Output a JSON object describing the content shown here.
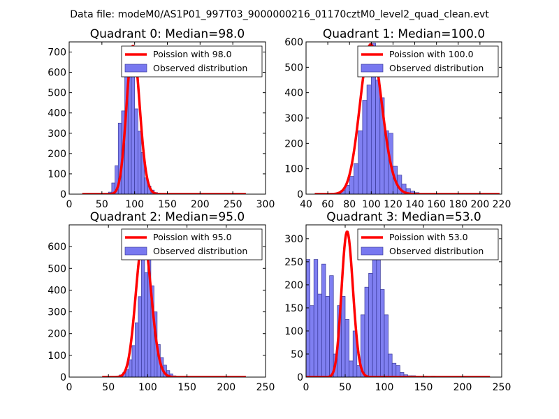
{
  "suptitle": "Data file: modeM0/AS1P01_997T03_9000000216_01170cztM0_level2_quad_clean.evt",
  "colors": {
    "bar_fill": "#7878f0",
    "bar_edge": "#3a3a9a",
    "poisson_line": "#ff0000",
    "legend_border": "#000000",
    "background": "#ffffff"
  },
  "chart_data": [
    {
      "type": "bar",
      "title": "Quadrant 0: Median=98.0",
      "xlim": [
        0,
        300
      ],
      "ylim": [
        0,
        750
      ],
      "xticks": [
        0,
        50,
        100,
        150,
        200,
        250,
        300
      ],
      "yticks": [
        0,
        100,
        200,
        300,
        400,
        500,
        600,
        700
      ],
      "bin_width": 5,
      "bars": [
        {
          "x": 60,
          "h": 10
        },
        {
          "x": 65,
          "h": 55
        },
        {
          "x": 70,
          "h": 140
        },
        {
          "x": 75,
          "h": 350
        },
        {
          "x": 80,
          "h": 410
        },
        {
          "x": 85,
          "h": 600
        },
        {
          "x": 90,
          "h": 690
        },
        {
          "x": 95,
          "h": 690
        },
        {
          "x": 100,
          "h": 420
        },
        {
          "x": 105,
          "h": 310
        },
        {
          "x": 110,
          "h": 205
        },
        {
          "x": 115,
          "h": 80
        },
        {
          "x": 120,
          "h": 40
        },
        {
          "x": 125,
          "h": 20
        },
        {
          "x": 130,
          "h": 8
        },
        {
          "x": 135,
          "h": 4
        }
      ],
      "poisson": {
        "mean": 98.0,
        "label": "Poission with 98.0",
        "peak": 730,
        "x_range": [
          20,
          270
        ]
      },
      "legend": {
        "line_label": "Poission with 98.0",
        "bar_label": "Observed distribution",
        "loc": "upper right"
      }
    },
    {
      "type": "bar",
      "title": "Quadrant 1: Median=100.0",
      "xlim": [
        40,
        220
      ],
      "ylim": [
        0,
        600
      ],
      "xticks": [
        40,
        60,
        80,
        100,
        120,
        140,
        160,
        180,
        200,
        220
      ],
      "yticks": [
        0,
        100,
        200,
        300,
        400,
        500,
        600
      ],
      "bin_width": 4,
      "bars": [
        {
          "x": 68,
          "h": 5
        },
        {
          "x": 72,
          "h": 15
        },
        {
          "x": 76,
          "h": 35
        },
        {
          "x": 80,
          "h": 70
        },
        {
          "x": 84,
          "h": 120
        },
        {
          "x": 88,
          "h": 250
        },
        {
          "x": 92,
          "h": 370
        },
        {
          "x": 96,
          "h": 430
        },
        {
          "x": 100,
          "h": 595
        },
        {
          "x": 104,
          "h": 450
        },
        {
          "x": 108,
          "h": 380
        },
        {
          "x": 112,
          "h": 250
        },
        {
          "x": 116,
          "h": 240
        },
        {
          "x": 120,
          "h": 110
        },
        {
          "x": 124,
          "h": 75
        },
        {
          "x": 128,
          "h": 40
        },
        {
          "x": 132,
          "h": 22
        },
        {
          "x": 136,
          "h": 12
        },
        {
          "x": 140,
          "h": 6
        },
        {
          "x": 144,
          "h": 3
        }
      ],
      "poisson": {
        "mean": 100.0,
        "label": "Poission with 100.0",
        "peak": 590,
        "x_range": [
          48,
          218
        ]
      },
      "legend": {
        "line_label": "Poission with 100.0",
        "bar_label": "Observed distribution",
        "loc": "upper right"
      }
    },
    {
      "type": "bar",
      "title": "Quadrant 2: Median=95.0",
      "xlim": [
        0,
        250
      ],
      "ylim": [
        0,
        700
      ],
      "xticks": [
        0,
        50,
        100,
        150,
        200,
        250
      ],
      "yticks": [
        0,
        100,
        200,
        300,
        400,
        500,
        600
      ],
      "bin_width": 4,
      "bars": [
        {
          "x": 60,
          "h": 5
        },
        {
          "x": 64,
          "h": 10
        },
        {
          "x": 68,
          "h": 20
        },
        {
          "x": 72,
          "h": 35
        },
        {
          "x": 76,
          "h": 80
        },
        {
          "x": 80,
          "h": 145
        },
        {
          "x": 84,
          "h": 250
        },
        {
          "x": 88,
          "h": 370
        },
        {
          "x": 92,
          "h": 660
        },
        {
          "x": 96,
          "h": 480
        },
        {
          "x": 100,
          "h": 630
        },
        {
          "x": 104,
          "h": 420
        },
        {
          "x": 108,
          "h": 300
        },
        {
          "x": 112,
          "h": 150
        },
        {
          "x": 116,
          "h": 90
        },
        {
          "x": 120,
          "h": 55
        },
        {
          "x": 124,
          "h": 30
        },
        {
          "x": 128,
          "h": 15
        },
        {
          "x": 132,
          "h": 6
        }
      ],
      "poisson": {
        "mean": 95.0,
        "label": "Poission with 95.0",
        "peak": 640,
        "x_range": [
          42,
          225
        ]
      },
      "legend": {
        "line_label": "Poission with 95.0",
        "bar_label": "Observed distribution",
        "loc": "upper right"
      }
    },
    {
      "type": "bar",
      "title": "Quadrant 3: Median=53.0",
      "xlim": [
        0,
        250
      ],
      "ylim": [
        0,
        330
      ],
      "xticks": [
        0,
        50,
        100,
        150,
        200,
        250
      ],
      "yticks": [
        0,
        50,
        100,
        150,
        200,
        250,
        300
      ],
      "bin_width": 5,
      "bars": [
        {
          "x": 0,
          "h": 255
        },
        {
          "x": 5,
          "h": 155
        },
        {
          "x": 10,
          "h": 255
        },
        {
          "x": 15,
          "h": 180
        },
        {
          "x": 20,
          "h": 245
        },
        {
          "x": 25,
          "h": 175
        },
        {
          "x": 30,
          "h": 220
        },
        {
          "x": 35,
          "h": 50
        },
        {
          "x": 40,
          "h": 155
        },
        {
          "x": 45,
          "h": 175
        },
        {
          "x": 50,
          "h": 125
        },
        {
          "x": 55,
          "h": 35
        },
        {
          "x": 60,
          "h": 100
        },
        {
          "x": 65,
          "h": 25
        },
        {
          "x": 70,
          "h": 135
        },
        {
          "x": 75,
          "h": 195
        },
        {
          "x": 80,
          "h": 225
        },
        {
          "x": 85,
          "h": 320
        },
        {
          "x": 90,
          "h": 270
        },
        {
          "x": 95,
          "h": 190
        },
        {
          "x": 100,
          "h": 135
        },
        {
          "x": 105,
          "h": 50
        },
        {
          "x": 110,
          "h": 30
        },
        {
          "x": 115,
          "h": 25
        },
        {
          "x": 120,
          "h": 10
        },
        {
          "x": 125,
          "h": 5
        },
        {
          "x": 130,
          "h": 3
        },
        {
          "x": 135,
          "h": 3
        },
        {
          "x": 140,
          "h": 2
        },
        {
          "x": 150,
          "h": 2
        },
        {
          "x": 160,
          "h": 2
        },
        {
          "x": 180,
          "h": 1
        },
        {
          "x": 200,
          "h": 1
        }
      ],
      "poisson": {
        "mean": 53.0,
        "label": "Poission with 53.0",
        "peak": 315,
        "x_range": [
          0,
          235
        ]
      },
      "legend": {
        "line_label": "Poission with 53.0",
        "bar_label": "Observed distribution",
        "loc": "upper right"
      }
    }
  ]
}
